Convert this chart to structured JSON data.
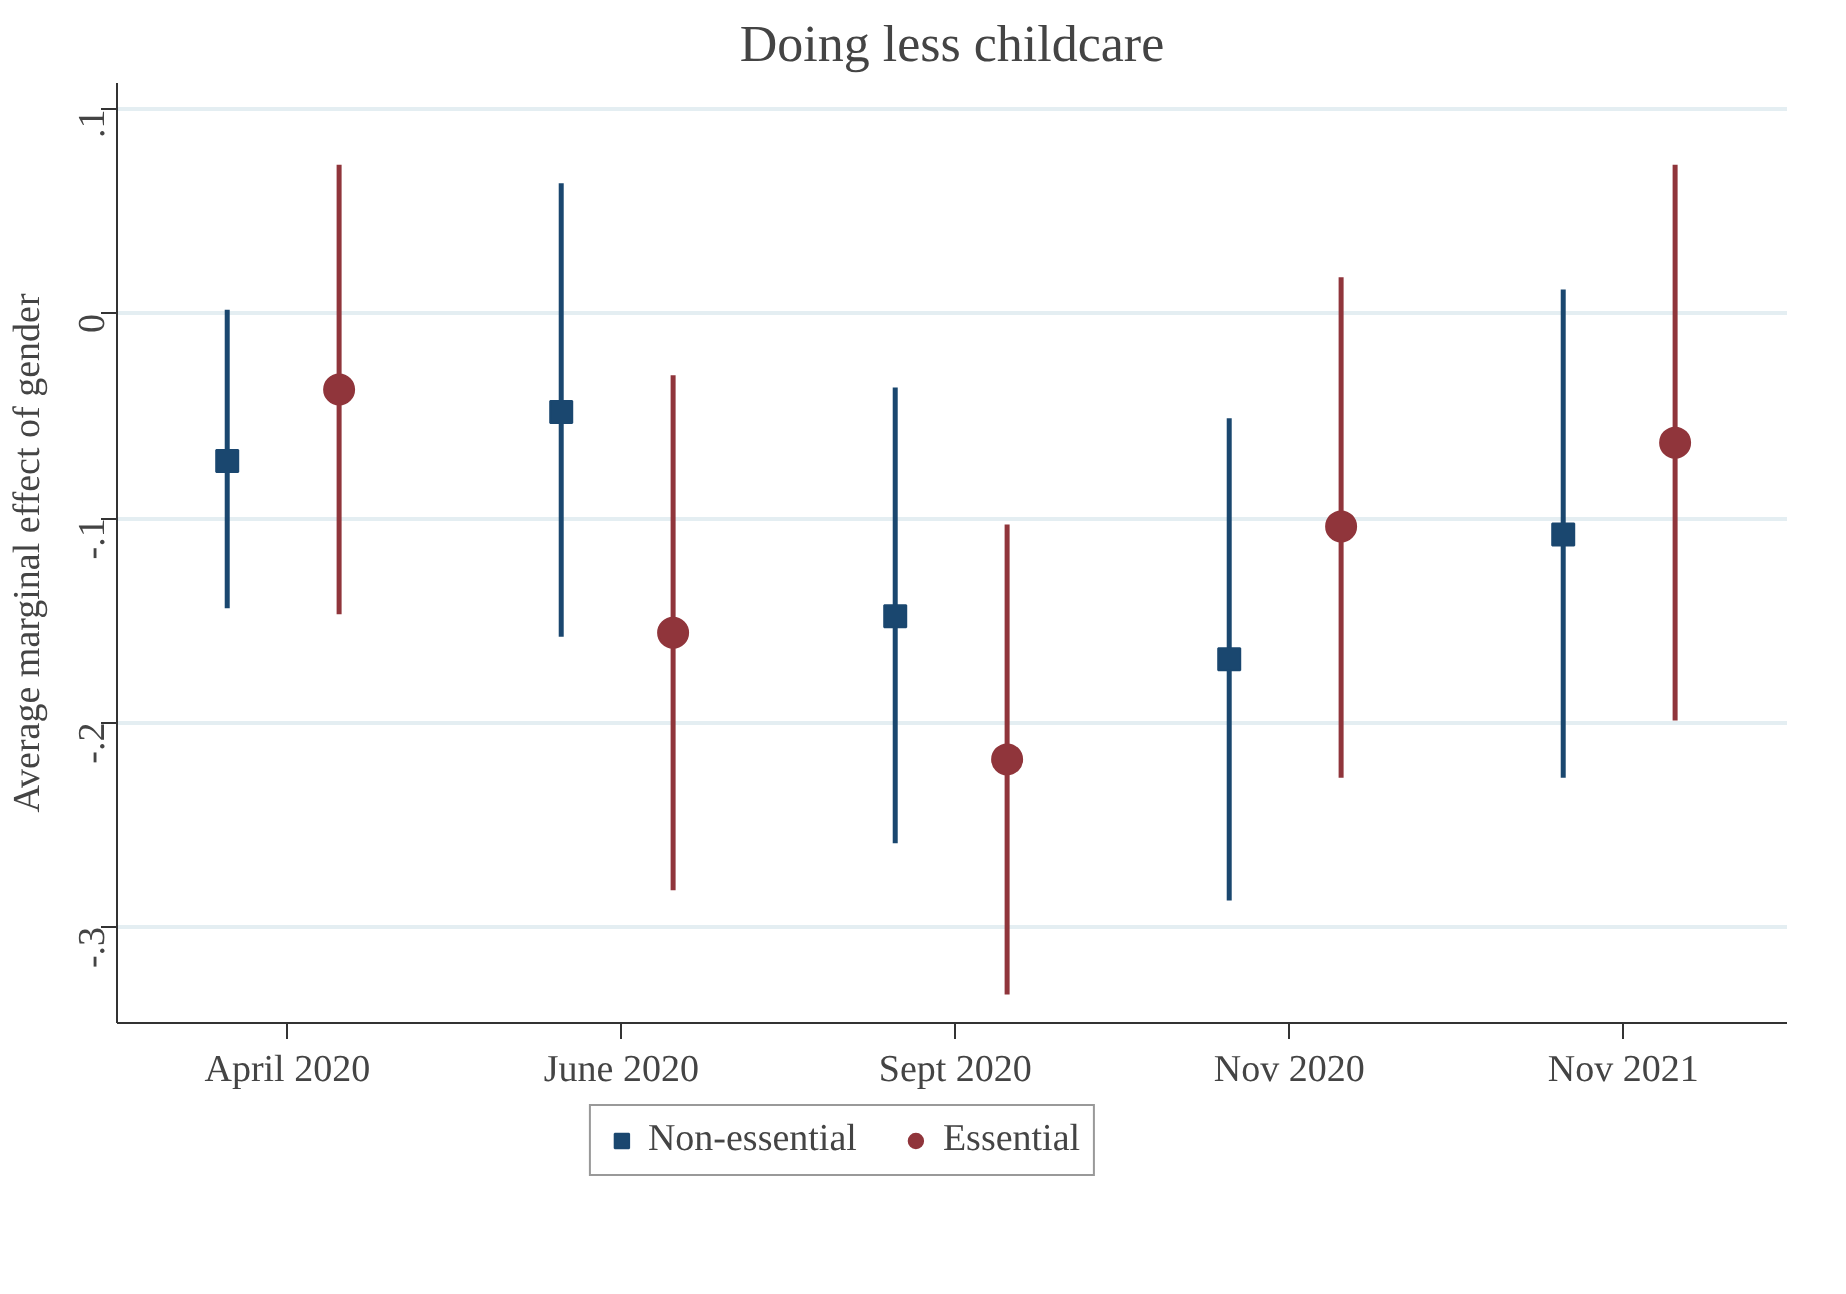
{
  "chart_data": {
    "type": "scatter",
    "title": "Doing less childcare",
    "ylabel": "Average marginal effect of gender",
    "categories": [
      "April 2020",
      "June 2020",
      "Sept 2020",
      "Nov 2020",
      "Nov 2021"
    ],
    "series": [
      {
        "name": "Non-essential",
        "color": "#1a476f",
        "marker": "square",
        "values": [
          -0.072,
          -0.048,
          -0.148,
          -0.169,
          -0.108
        ],
        "errors": [
          [
            -0.144,
            0.002
          ],
          [
            -0.158,
            0.064
          ],
          [
            -0.259,
            -0.036
          ],
          [
            -0.287,
            -0.051
          ],
          [
            -0.227,
            0.012
          ]
        ]
      },
      {
        "name": "Essential",
        "color": "#90353b",
        "marker": "circle",
        "values": [
          -0.037,
          -0.156,
          -0.218,
          -0.104,
          -0.063
        ],
        "errors": [
          [
            -0.147,
            0.073
          ],
          [
            -0.282,
            -0.03
          ],
          [
            -0.333,
            -0.103
          ],
          [
            -0.227,
            0.018
          ],
          [
            -0.199,
            0.073
          ]
        ]
      }
    ],
    "ylim": [
      -0.347,
      0.113
    ],
    "yticks": [
      {
        "value": 0.1,
        "label": ".1"
      },
      0,
      {
        "value": -0.1,
        "label": "-.1"
      },
      {
        "value": -0.2,
        "label": "-.2"
      },
      {
        "value": -0.3,
        "label": "-.3"
      }
    ],
    "grid": "y",
    "legend": "bottom"
  }
}
